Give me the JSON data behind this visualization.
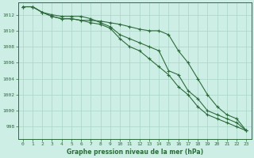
{
  "x": [
    0,
    1,
    2,
    3,
    4,
    5,
    6,
    7,
    8,
    9,
    10,
    11,
    12,
    13,
    14,
    15,
    16,
    17,
    18,
    19,
    20,
    21,
    22,
    23
  ],
  "line1": [
    1013.0,
    1013.0,
    1012.3,
    1011.8,
    1011.5,
    1011.5,
    1011.3,
    1011.0,
    1010.8,
    1010.3,
    1009.0,
    1008.0,
    1007.5,
    1006.5,
    1005.5,
    1004.5,
    1003.0,
    1002.0,
    1000.5,
    999.5,
    999.0,
    998.5,
    998.0,
    997.5
  ],
  "line2": [
    1013.0,
    1013.0,
    1012.3,
    1011.8,
    1011.5,
    1011.5,
    1011.3,
    1011.3,
    1011.2,
    1011.0,
    1010.8,
    1010.5,
    1010.2,
    1010.0,
    1010.0,
    1009.5,
    1007.5,
    1006.0,
    1004.0,
    1002.0,
    1000.5,
    999.5,
    999.0,
    997.5
  ],
  "line3": [
    1013.0,
    1013.0,
    1012.3,
    1012.0,
    1011.8,
    1011.8,
    1011.8,
    1011.5,
    1011.0,
    1010.5,
    1009.5,
    1009.0,
    1008.5,
    1008.0,
    1007.5,
    1005.0,
    1004.5,
    1002.5,
    1001.5,
    1000.0,
    999.5,
    999.0,
    998.5,
    997.5
  ],
  "bg_color": "#cceee4",
  "grid_color": "#aad4c8",
  "line_color": "#2d6b3c",
  "title": "Graphe pression niveau de la mer (hPa)",
  "ylim": [
    996.5,
    1013.5
  ],
  "yticks": [
    998,
    1000,
    1002,
    1004,
    1006,
    1008,
    1010,
    1012
  ],
  "xlim": [
    -0.5,
    23.5
  ],
  "xticks": [
    0,
    1,
    2,
    3,
    4,
    5,
    6,
    7,
    8,
    9,
    10,
    11,
    12,
    13,
    14,
    15,
    16,
    17,
    18,
    19,
    20,
    21,
    22,
    23
  ]
}
